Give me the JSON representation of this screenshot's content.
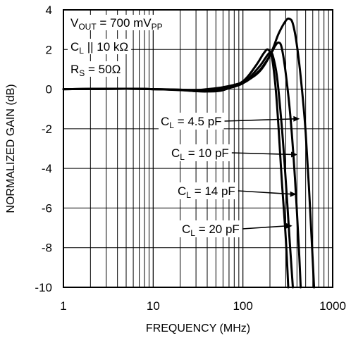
{
  "chart_data": {
    "type": "line",
    "xlabel": "FREQUENCY (MHz)",
    "ylabel": "NORMALIZED GAIN (dB)",
    "x_scale": "log",
    "xlim": [
      1,
      1000
    ],
    "ylim": [
      -10,
      4
    ],
    "grid": true,
    "x_ticks": [
      {
        "value": 1,
        "label": "1"
      },
      {
        "value": 10,
        "label": "10"
      },
      {
        "value": 100,
        "label": "100"
      },
      {
        "value": 1000,
        "label": "1000"
      }
    ],
    "y_ticks": [
      {
        "value": 4,
        "label": "4"
      },
      {
        "value": 2,
        "label": "2"
      },
      {
        "value": 0,
        "label": "0"
      },
      {
        "value": -2,
        "label": "-2"
      },
      {
        "value": -4,
        "label": "-4"
      },
      {
        "value": -6,
        "label": "-6"
      },
      {
        "value": -8,
        "label": "-8"
      },
      {
        "value": -10,
        "label": "-10"
      }
    ],
    "conditions": [
      {
        "main": "V",
        "sub": "OUT",
        "rest": " = 700 mV",
        "sub2": "PP"
      },
      {
        "main": "C",
        "sub": "L",
        "rest": " || 10 kΩ",
        "sub2": ""
      },
      {
        "main": "R",
        "sub": "S",
        "rest": " = 50Ω",
        "sub2": ""
      }
    ],
    "series": [
      {
        "name": "C_L = 4.5 pF",
        "label_main": "C",
        "label_sub": "L",
        "label_rest": " = 4.5 pF",
        "arrow_at": [
          430,
          -1.5
        ],
        "points": [
          [
            1,
            0
          ],
          [
            5,
            0.02
          ],
          [
            10,
            0
          ],
          [
            20,
            -0.03
          ],
          [
            30,
            -0.05
          ],
          [
            40,
            0
          ],
          [
            60,
            0.1
          ],
          [
            100,
            0.35
          ],
          [
            150,
            0.85
          ],
          [
            200,
            1.7
          ],
          [
            250,
            2.8
          ],
          [
            300,
            3.45
          ],
          [
            330,
            3.55
          ],
          [
            360,
            3.3
          ],
          [
            400,
            2.2
          ],
          [
            450,
            0.2
          ],
          [
            500,
            -2.2
          ],
          [
            560,
            -6
          ],
          [
            620,
            -10
          ]
        ]
      },
      {
        "name": "C_L = 10 pF",
        "label_main": "C",
        "label_sub": "L",
        "label_rest": " = 10 pF",
        "arrow_at": [
          405,
          -3.3
        ],
        "points": [
          [
            1,
            0
          ],
          [
            5,
            0.02
          ],
          [
            10,
            0
          ],
          [
            20,
            -0.03
          ],
          [
            30,
            -0.08
          ],
          [
            40,
            -0.05
          ],
          [
            60,
            0.05
          ],
          [
            100,
            0.3
          ],
          [
            150,
            0.9
          ],
          [
            200,
            1.7
          ],
          [
            230,
            2.2
          ],
          [
            250,
            2.35
          ],
          [
            270,
            2.1
          ],
          [
            300,
            0.8
          ],
          [
            340,
            -1.5
          ],
          [
            380,
            -4.5
          ],
          [
            420,
            -8
          ],
          [
            440,
            -10
          ]
        ]
      },
      {
        "name": "C_L = 14 pF",
        "label_main": "C",
        "label_sub": "L",
        "label_rest": " = 14 pF",
        "arrow_at": [
          395,
          -5.3
        ],
        "points": [
          [
            1,
            0
          ],
          [
            5,
            0.02
          ],
          [
            10,
            0
          ],
          [
            20,
            -0.04
          ],
          [
            30,
            -0.1
          ],
          [
            40,
            -0.1
          ],
          [
            60,
            0
          ],
          [
            100,
            0.3
          ],
          [
            150,
            1.1
          ],
          [
            180,
            1.6
          ],
          [
            200,
            1.85
          ],
          [
            215,
            1.7
          ],
          [
            240,
            0.6
          ],
          [
            270,
            -1.8
          ],
          [
            300,
            -4.6
          ],
          [
            330,
            -7.5
          ],
          [
            360,
            -10
          ]
        ]
      },
      {
        "name": "C_L = 20 pF",
        "label_main": "C",
        "label_sub": "L",
        "label_rest": " = 20 pF",
        "arrow_at": [
          355,
          -6.9
        ],
        "points": [
          [
            1,
            0
          ],
          [
            5,
            0.02
          ],
          [
            10,
            0
          ],
          [
            20,
            -0.05
          ],
          [
            30,
            -0.1
          ],
          [
            40,
            -0.12
          ],
          [
            60,
            -0.05
          ],
          [
            100,
            0.4
          ],
          [
            140,
            1.2
          ],
          [
            170,
            1.8
          ],
          [
            190,
            2.0
          ],
          [
            210,
            1.6
          ],
          [
            230,
            0.2
          ],
          [
            250,
            -2
          ],
          [
            270,
            -4.5
          ],
          [
            300,
            -7.5
          ],
          [
            320,
            -10
          ]
        ]
      }
    ]
  }
}
